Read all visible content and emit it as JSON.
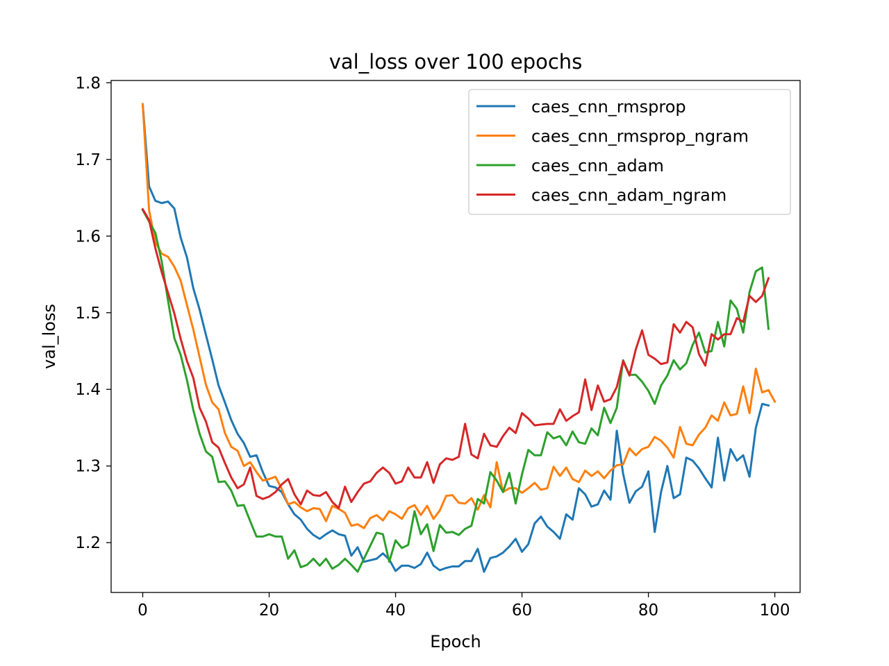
{
  "chart_data": {
    "type": "line",
    "title": "val_loss over 100 epochs",
    "xlabel": "Epoch",
    "ylabel": "val_loss",
    "xlim": [
      -5,
      104
    ],
    "ylim": [
      1.135,
      1.803
    ],
    "xticks": [
      0,
      20,
      40,
      60,
      80,
      100
    ],
    "yticks": [
      1.2,
      1.3,
      1.4,
      1.5,
      1.6,
      1.7,
      1.8
    ],
    "grid": false,
    "legend_position": "top-right",
    "series": [
      {
        "name": "caes_cnn_rmsprop",
        "color": "#1f77b4",
        "values": [
          1.772,
          1.665,
          1.646,
          1.643,
          1.645,
          1.636,
          1.598,
          1.572,
          1.532,
          1.504,
          1.471,
          1.439,
          1.405,
          1.383,
          1.36,
          1.342,
          1.33,
          1.312,
          1.314,
          1.292,
          1.274,
          1.272,
          1.266,
          1.25,
          1.237,
          1.23,
          1.218,
          1.21,
          1.205,
          1.211,
          1.216,
          1.211,
          1.209,
          1.183,
          1.194,
          1.175,
          1.177,
          1.179,
          1.186,
          1.178,
          1.163,
          1.17,
          1.17,
          1.167,
          1.172,
          1.187,
          1.17,
          1.164,
          1.167,
          1.169,
          1.169,
          1.176,
          1.176,
          1.192,
          1.162,
          1.18,
          1.182,
          1.187,
          1.195,
          1.205,
          1.188,
          1.198,
          1.225,
          1.234,
          1.221,
          1.214,
          1.205,
          1.237,
          1.23,
          1.271,
          1.263,
          1.247,
          1.25,
          1.268,
          1.256,
          1.346,
          1.29,
          1.252,
          1.267,
          1.273,
          1.293,
          1.214,
          1.266,
          1.3,
          1.258,
          1.263,
          1.311,
          1.307,
          1.297,
          1.284,
          1.272,
          1.337,
          1.281,
          1.322,
          1.307,
          1.314,
          1.286,
          1.35,
          1.381,
          1.379
        ]
      },
      {
        "name": "caes_cnn_rmsprop_ngram",
        "color": "#ff7f0e",
        "values": [
          1.772,
          1.634,
          1.592,
          1.577,
          1.573,
          1.56,
          1.542,
          1.51,
          1.478,
          1.442,
          1.406,
          1.383,
          1.374,
          1.343,
          1.325,
          1.32,
          1.3,
          1.305,
          1.292,
          1.281,
          1.283,
          1.286,
          1.27,
          1.25,
          1.253,
          1.246,
          1.241,
          1.245,
          1.244,
          1.228,
          1.248,
          1.244,
          1.239,
          1.222,
          1.224,
          1.219,
          1.232,
          1.236,
          1.229,
          1.241,
          1.237,
          1.231,
          1.245,
          1.249,
          1.236,
          1.248,
          1.231,
          1.242,
          1.261,
          1.262,
          1.252,
          1.251,
          1.258,
          1.243,
          1.262,
          1.246,
          1.305,
          1.266,
          1.271,
          1.271,
          1.265,
          1.271,
          1.278,
          1.269,
          1.271,
          1.299,
          1.287,
          1.298,
          1.283,
          1.279,
          1.294,
          1.287,
          1.293,
          1.284,
          1.294,
          1.301,
          1.302,
          1.323,
          1.314,
          1.322,
          1.325,
          1.338,
          1.333,
          1.324,
          1.311,
          1.351,
          1.329,
          1.327,
          1.341,
          1.35,
          1.366,
          1.359,
          1.383,
          1.366,
          1.368,
          1.404,
          1.369,
          1.427,
          1.396,
          1.399,
          1.384
        ]
      },
      {
        "name": "caes_cnn_adam",
        "color": "#2ca02c",
        "values": [
          1.634,
          1.619,
          1.604,
          1.567,
          1.516,
          1.467,
          1.445,
          1.412,
          1.373,
          1.342,
          1.319,
          1.312,
          1.279,
          1.28,
          1.268,
          1.248,
          1.249,
          1.228,
          1.208,
          1.208,
          1.211,
          1.208,
          1.208,
          1.179,
          1.19,
          1.168,
          1.171,
          1.179,
          1.17,
          1.179,
          1.166,
          1.171,
          1.179,
          1.171,
          1.162,
          1.179,
          1.196,
          1.213,
          1.211,
          1.175,
          1.203,
          1.193,
          1.197,
          1.241,
          1.211,
          1.224,
          1.189,
          1.223,
          1.213,
          1.214,
          1.21,
          1.218,
          1.222,
          1.257,
          1.251,
          1.292,
          1.281,
          1.266,
          1.291,
          1.251,
          1.289,
          1.321,
          1.314,
          1.314,
          1.344,
          1.336,
          1.339,
          1.327,
          1.345,
          1.331,
          1.329,
          1.349,
          1.34,
          1.376,
          1.356,
          1.376,
          1.438,
          1.419,
          1.419,
          1.41,
          1.398,
          1.381,
          1.405,
          1.418,
          1.438,
          1.426,
          1.434,
          1.458,
          1.474,
          1.448,
          1.45,
          1.488,
          1.456,
          1.516,
          1.505,
          1.474,
          1.527,
          1.554,
          1.559,
          1.479
        ]
      },
      {
        "name": "caes_cnn_adam_ngram",
        "color": "#d62728",
        "values": [
          1.635,
          1.621,
          1.584,
          1.553,
          1.526,
          1.499,
          1.466,
          1.437,
          1.415,
          1.376,
          1.358,
          1.331,
          1.324,
          1.304,
          1.285,
          1.271,
          1.276,
          1.298,
          1.261,
          1.257,
          1.26,
          1.266,
          1.276,
          1.283,
          1.263,
          1.25,
          1.268,
          1.262,
          1.261,
          1.266,
          1.253,
          1.245,
          1.273,
          1.253,
          1.266,
          1.277,
          1.28,
          1.291,
          1.298,
          1.291,
          1.277,
          1.28,
          1.298,
          1.285,
          1.285,
          1.305,
          1.278,
          1.302,
          1.31,
          1.308,
          1.312,
          1.355,
          1.315,
          1.31,
          1.342,
          1.327,
          1.325,
          1.339,
          1.35,
          1.343,
          1.369,
          1.362,
          1.353,
          1.354,
          1.355,
          1.355,
          1.374,
          1.359,
          1.365,
          1.37,
          1.413,
          1.373,
          1.405,
          1.384,
          1.387,
          1.403,
          1.437,
          1.418,
          1.452,
          1.477,
          1.445,
          1.44,
          1.433,
          1.435,
          1.485,
          1.474,
          1.488,
          1.481,
          1.446,
          1.431,
          1.472,
          1.465,
          1.472,
          1.472,
          1.493,
          1.488,
          1.522,
          1.514,
          1.522,
          1.545
        ]
      }
    ]
  }
}
